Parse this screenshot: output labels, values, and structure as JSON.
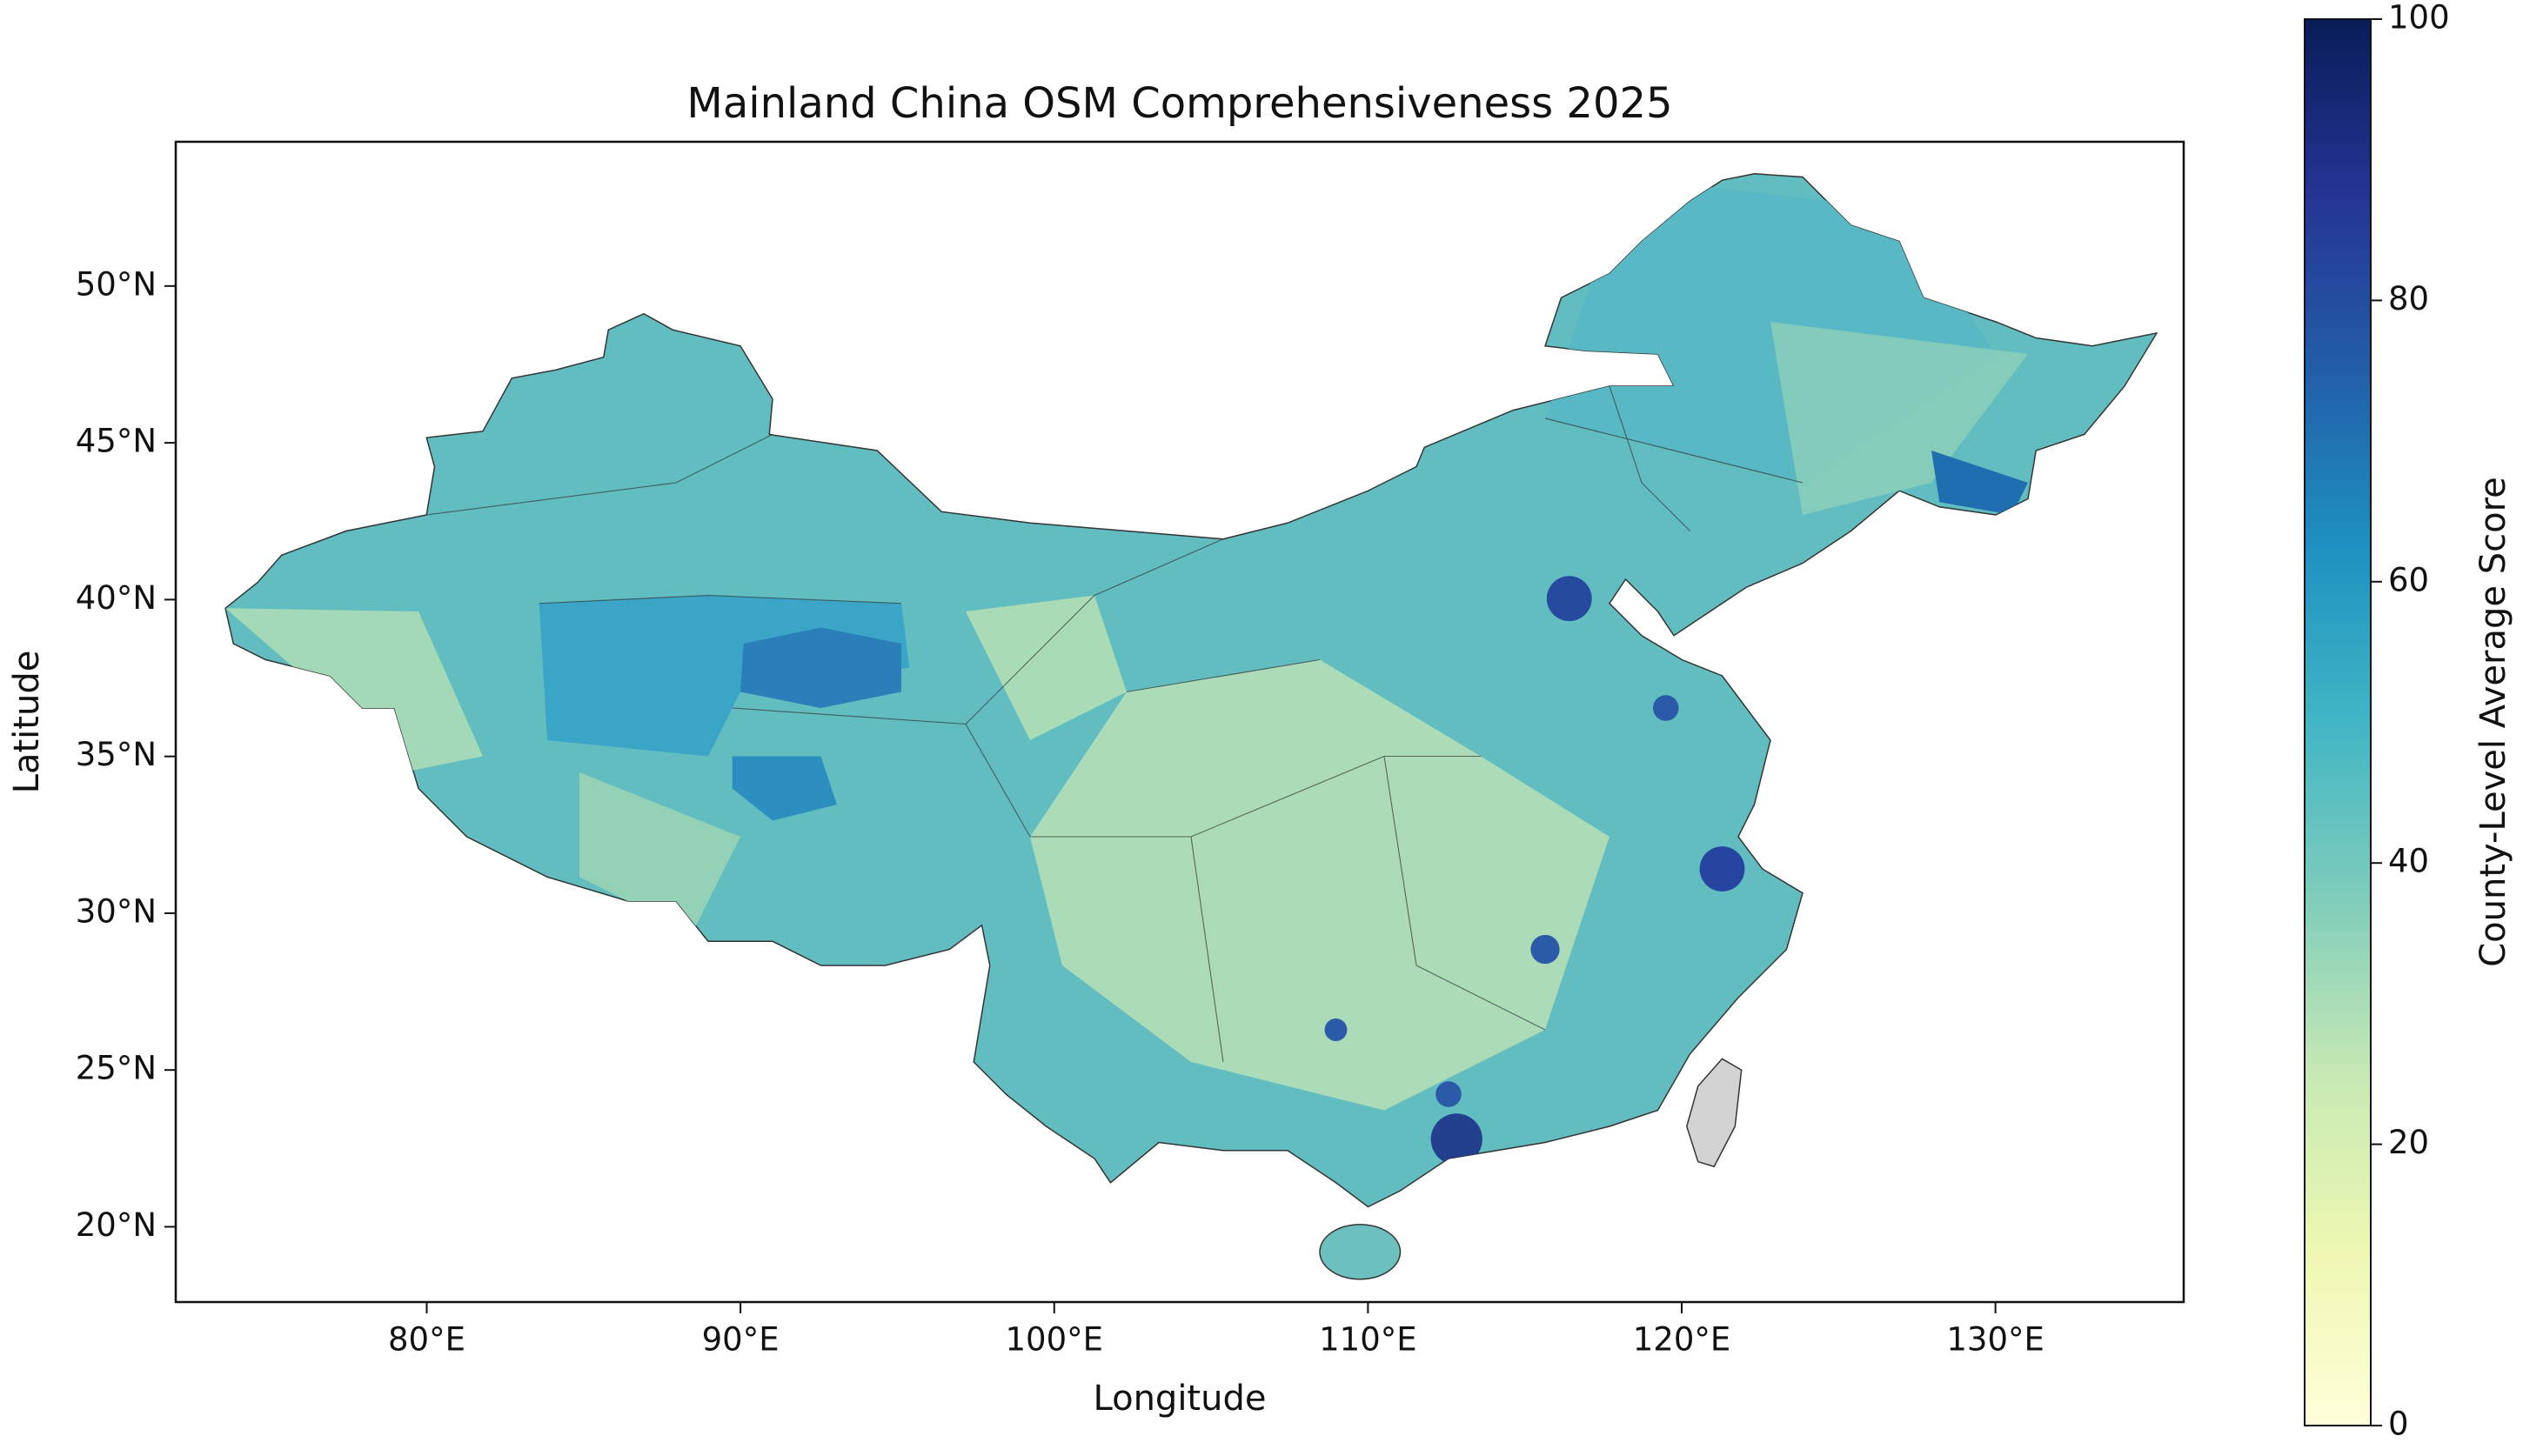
{
  "chart_data": {
    "type": "map",
    "title": "Mainland China OSM Comprehensiveness 2025",
    "x_label": "Longitude",
    "y_label": "Latitude",
    "xlim": [
      72,
      136
    ],
    "ylim": [
      17.6,
      54.6
    ],
    "xticks": [
      {
        "value": 80,
        "label": "80°E"
      },
      {
        "value": 90,
        "label": "90°E"
      },
      {
        "value": 100,
        "label": "100°E"
      },
      {
        "value": 110,
        "label": "110°E"
      },
      {
        "value": 120,
        "label": "120°E"
      },
      {
        "value": 130,
        "label": "130°E"
      }
    ],
    "yticks": [
      {
        "value": 20,
        "label": "20°N"
      },
      {
        "value": 25,
        "label": "25°N"
      },
      {
        "value": 30,
        "label": "30°N"
      },
      {
        "value": 35,
        "label": "35°N"
      },
      {
        "value": 40,
        "label": "40°N"
      },
      {
        "value": 45,
        "label": "45°N"
      },
      {
        "value": 50,
        "label": "50°N"
      }
    ],
    "colorbar_label": "County-Level Average Score",
    "colorbar_lim": [
      0,
      100
    ],
    "colorbar_ticks": [
      0,
      20,
      40,
      60,
      80,
      100
    ]
  }
}
